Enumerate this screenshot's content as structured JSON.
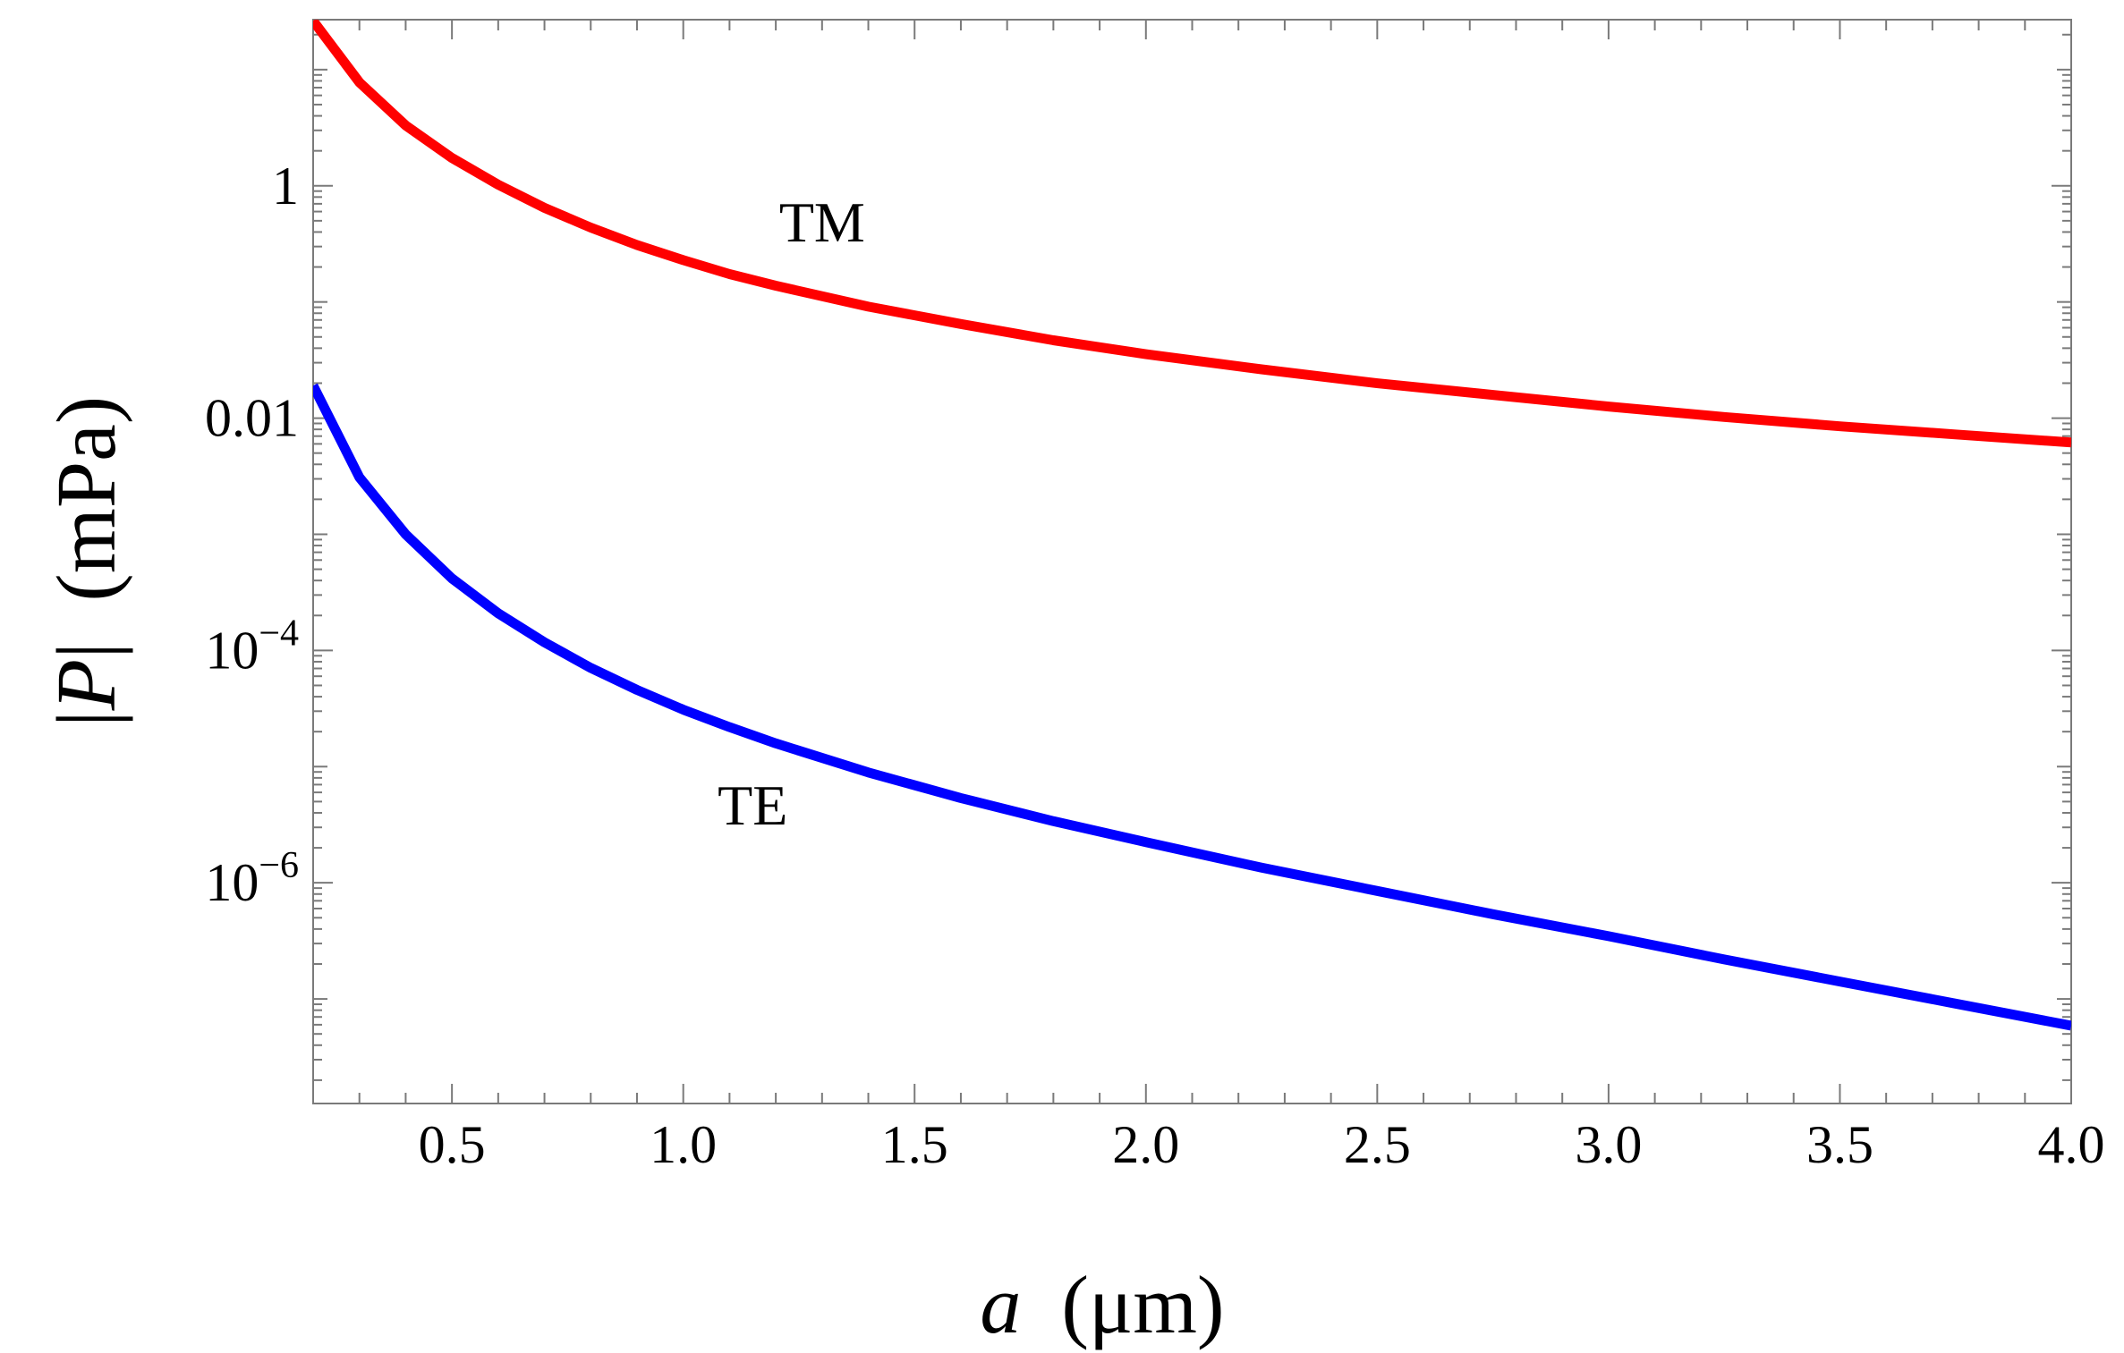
{
  "chart_data": {
    "type": "line",
    "title": "",
    "xlabel_var": "a",
    "xlabel_unit": "(μm)",
    "ylabel_var": "P",
    "ylabel_unit": "(mPa)",
    "xlim": [
      0.2,
      4.0
    ],
    "ylim_log10": [
      -7.9,
      1.43
    ],
    "yscale": "log",
    "x_ticks": [
      0.5,
      1.0,
      1.5,
      2.0,
      2.5,
      3.0,
      3.5,
      4.0
    ],
    "x_tick_labels": [
      "0.5",
      "1.0",
      "1.5",
      "2.0",
      "2.5",
      "3.0",
      "3.5",
      "4.0"
    ],
    "y_ticks_log10": [
      0,
      -2,
      -4,
      -6
    ],
    "y_tick_labels": [
      {
        "base": "1",
        "exp": ""
      },
      {
        "base": "0.01",
        "exp": ""
      },
      {
        "base": "10",
        "exp": "−4"
      },
      {
        "base": "10",
        "exp": "−6"
      }
    ],
    "x": [
      0.2,
      0.3,
      0.4,
      0.5,
      0.6,
      0.7,
      0.8,
      0.9,
      1.0,
      1.1,
      1.2,
      1.4,
      1.6,
      1.8,
      2.0,
      2.25,
      2.5,
      2.75,
      3.0,
      3.25,
      3.5,
      3.75,
      4.0
    ],
    "series": [
      {
        "name": "TM",
        "color": "#ff0000",
        "log10_values": [
          1.42,
          0.89,
          0.52,
          0.24,
          0.01,
          -0.19,
          -0.36,
          -0.51,
          -0.64,
          -0.76,
          -0.86,
          -1.04,
          -1.19,
          -1.33,
          -1.45,
          -1.58,
          -1.7,
          -1.8,
          -1.9,
          -1.99,
          -2.07,
          -2.14,
          -2.21
        ]
      },
      {
        "name": "TE",
        "color": "#0000ff",
        "log10_values": [
          -1.72,
          -2.51,
          -3.0,
          -3.38,
          -3.68,
          -3.93,
          -4.15,
          -4.34,
          -4.51,
          -4.66,
          -4.8,
          -5.05,
          -5.27,
          -5.47,
          -5.65,
          -5.87,
          -6.07,
          -6.27,
          -6.46,
          -6.66,
          -6.85,
          -7.04,
          -7.23
        ]
      }
    ],
    "annotations": [
      {
        "text": "TM",
        "x": 1.3,
        "log10_y": -0.48
      },
      {
        "text": "TE",
        "x": 1.15,
        "log10_y": -5.5
      }
    ],
    "grid": false,
    "legend": "none"
  }
}
